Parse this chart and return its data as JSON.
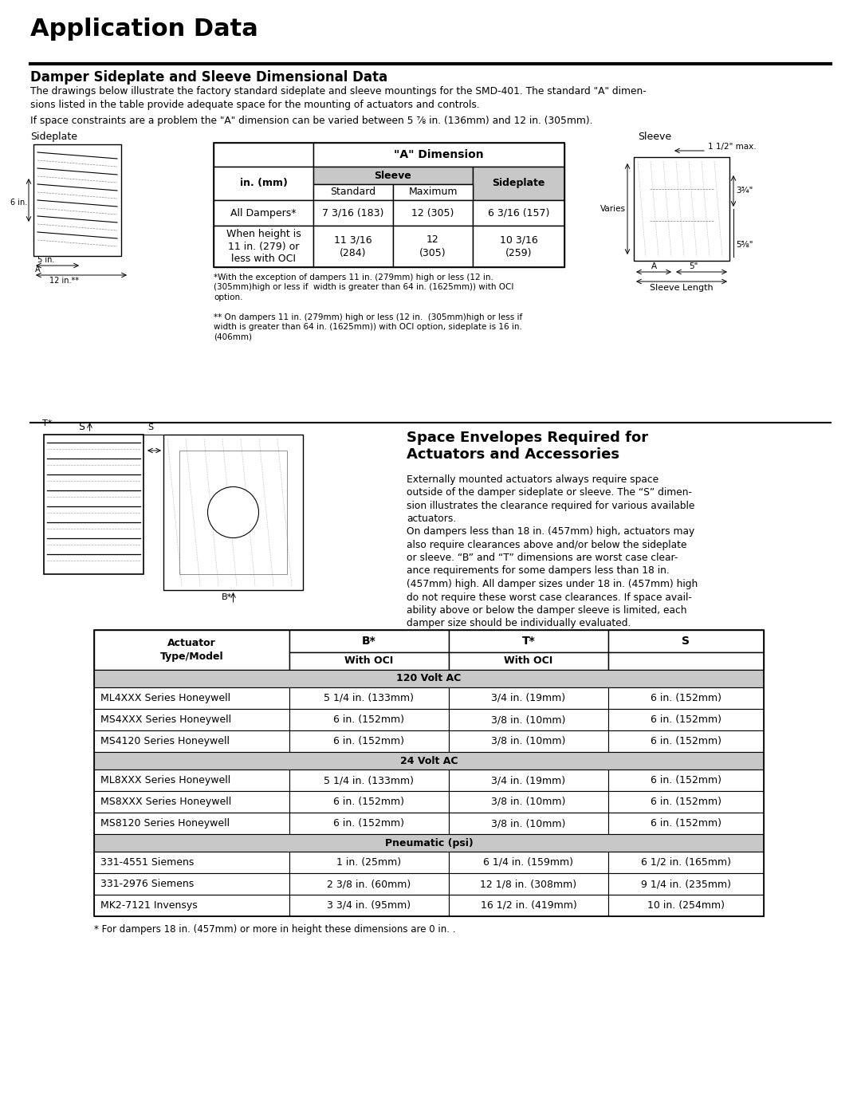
{
  "title": "Application Data",
  "section1_title": "Damper Sideplate and Sleeve Dimensional Data",
  "section1_body1": "The drawings below illustrate the factory standard sideplate and sleeve mountings for the SMD-401. The standard \"A\" dimen-\nsions listed in the table provide adequate space for the mounting of actuators and controls.",
  "section1_body2": "If space constraints are a problem the \"A\" dimension can be varied between 5 ⅞ in. (136mm) and 12 in. (305mm).",
  "table1_row1": [
    "All Dampers*",
    "7 3/16 (183)",
    "12 (305)",
    "6 3/16 (157)"
  ],
  "table1_row2_col0": "When height is\n11 in. (279) or\nless with OCI",
  "table1_row2_col1": "11 3/16\n(284)",
  "table1_row2_col2": "12\n(305)",
  "table1_row2_col3": "10 3/16\n(259)",
  "footnote1": "*With the exception of dampers 11 in. (279mm) high or less (12 in.\n(305mm)high or less if  width is greater than 64 in. (1625mm)) with OCI\noption.",
  "footnote2": "** On dampers 11 in. (279mm) high or less (12 in.  (305mm)high or less if\nwidth is greater than 64 in. (1625mm)) with OCI option, sideplate is 16 in.\n(406mm)",
  "section2_title": "Space Envelopes Required for\nActuators and Accessories",
  "section2_body1": "Externally mounted actuators always require space\noutside of the damper sideplate or sleeve. The “S” dimen-\nsion illustrates the clearance required for various available\nactuators.",
  "section2_body2": "On dampers less than 18 in. (457mm) high, actuators may\nalso require clearances above and/or below the sideplate\nor sleeve. “B” and “T” dimensions are worst case clear-\nance requirements for some dampers less than 18 in.\n(457mm) high. All damper sizes under 18 in. (457mm) high\ndo not require these worst case clearances. If space avail-\nability above or below the damper sleeve is limited, each\ndamper size should be individually evaluated.",
  "table2_section1": "120 Volt AC",
  "table2_section2": "24 Volt AC",
  "table2_section3": "Pneumatic (psi)",
  "table2_rows": [
    [
      "ML4XXX Series Honeywell",
      "5 1/4 in. (133mm)",
      "3/4 in. (19mm)",
      "6 in. (152mm)"
    ],
    [
      "MS4XXX Series Honeywell",
      "6 in. (152mm)",
      "3/8 in. (10mm)",
      "6 in. (152mm)"
    ],
    [
      "MS4120 Series Honeywell",
      "6 in. (152mm)",
      "3/8 in. (10mm)",
      "6 in. (152mm)"
    ],
    [
      "ML8XXX Series Honeywell",
      "5 1/4 in. (133mm)",
      "3/4 in. (19mm)",
      "6 in. (152mm)"
    ],
    [
      "MS8XXX Series Honeywell",
      "6 in. (152mm)",
      "3/8 in. (10mm)",
      "6 in. (152mm)"
    ],
    [
      "MS8120 Series Honeywell",
      "6 in. (152mm)",
      "3/8 in. (10mm)",
      "6 in. (152mm)"
    ],
    [
      "331-4551 Siemens",
      "1 in. (25mm)",
      "6 1/4 in. (159mm)",
      "6 1/2 in. (165mm)"
    ],
    [
      "331-2976 Siemens",
      "2 3/8 in. (60mm)",
      "12 1/8 in. (308mm)",
      "9 1/4 in. (235mm)"
    ],
    [
      "MK2-7121 Invensys",
      "3 3/4 in. (95mm)",
      "16 1/2 in. (419mm)",
      "10 in. (254mm)"
    ]
  ],
  "table2_footnote": "* For dampers 18 in. (457mm) or more in height these dimensions are 0 in. .",
  "bg_color": "#ffffff"
}
